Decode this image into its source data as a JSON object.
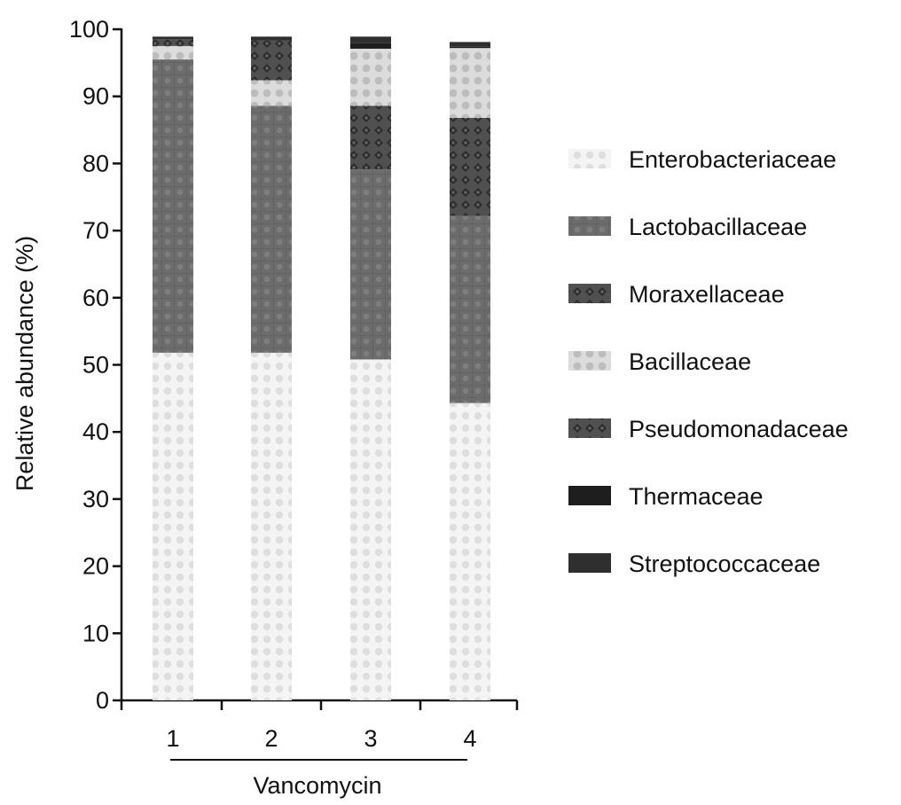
{
  "chart_data": {
    "type": "bar",
    "stacked": true,
    "categories": [
      "1",
      "2",
      "3",
      "4"
    ],
    "group_label": "Vancomycin",
    "ylabel": "Relative abundance (%)",
    "xlabel": "",
    "ylim": [
      0,
      100
    ],
    "yticks": [
      "0",
      "10",
      "20",
      "30",
      "40",
      "50",
      "60",
      "70",
      "80",
      "90",
      "100"
    ],
    "legend_position": "right",
    "grid": false,
    "series": [
      {
        "name": "Enterobacteriaceae",
        "color": "#e8e8e8",
        "pattern": "light-dots",
        "values": [
          51.8,
          51.8,
          50.8,
          44.3
        ]
      },
      {
        "name": "Lactobacillaceae",
        "color": "#6e6e6e",
        "pattern": "grid",
        "values": [
          43.7,
          36.8,
          28.3,
          27.9
        ]
      },
      {
        "name": "Moraxellaceae",
        "color": "#4a4a4a",
        "pattern": "diamonds",
        "values": [
          0.0,
          0.0,
          9.5,
          14.6
        ]
      },
      {
        "name": "Bacillaceae",
        "color": "#cfcfcf",
        "pattern": "dots",
        "values": [
          2.0,
          3.8,
          8.5,
          10.4
        ]
      },
      {
        "name": "Pseudomonadaceae",
        "color": "#5a5a5a",
        "pattern": "diamonds",
        "values": [
          1.0,
          5.9,
          0.0,
          0.0
        ]
      },
      {
        "name": "Thermaceae",
        "color": "#1e1e1e",
        "pattern": "solid",
        "values": [
          0.0,
          0.0,
          0.8,
          0.2
        ]
      },
      {
        "name": "Streptococcaceae",
        "color": "#2f2f2f",
        "pattern": "solid",
        "values": [
          0.4,
          0.6,
          1.0,
          0.7
        ]
      }
    ]
  }
}
